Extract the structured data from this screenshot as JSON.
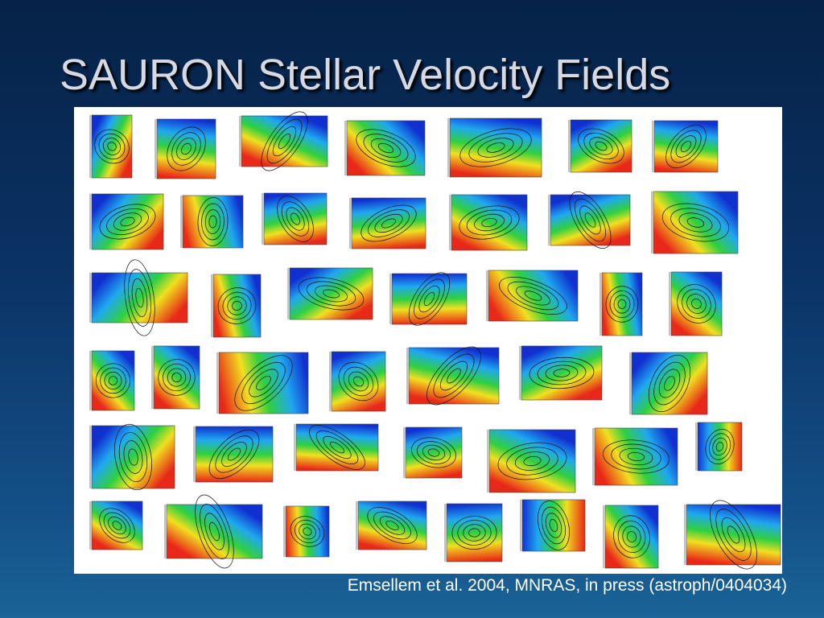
{
  "slide": {
    "title": "SAURON Stellar Velocity Fields",
    "caption": "Emsellem et al. 2004, MNRAS, in press (astroph/0404034)"
  }
}
